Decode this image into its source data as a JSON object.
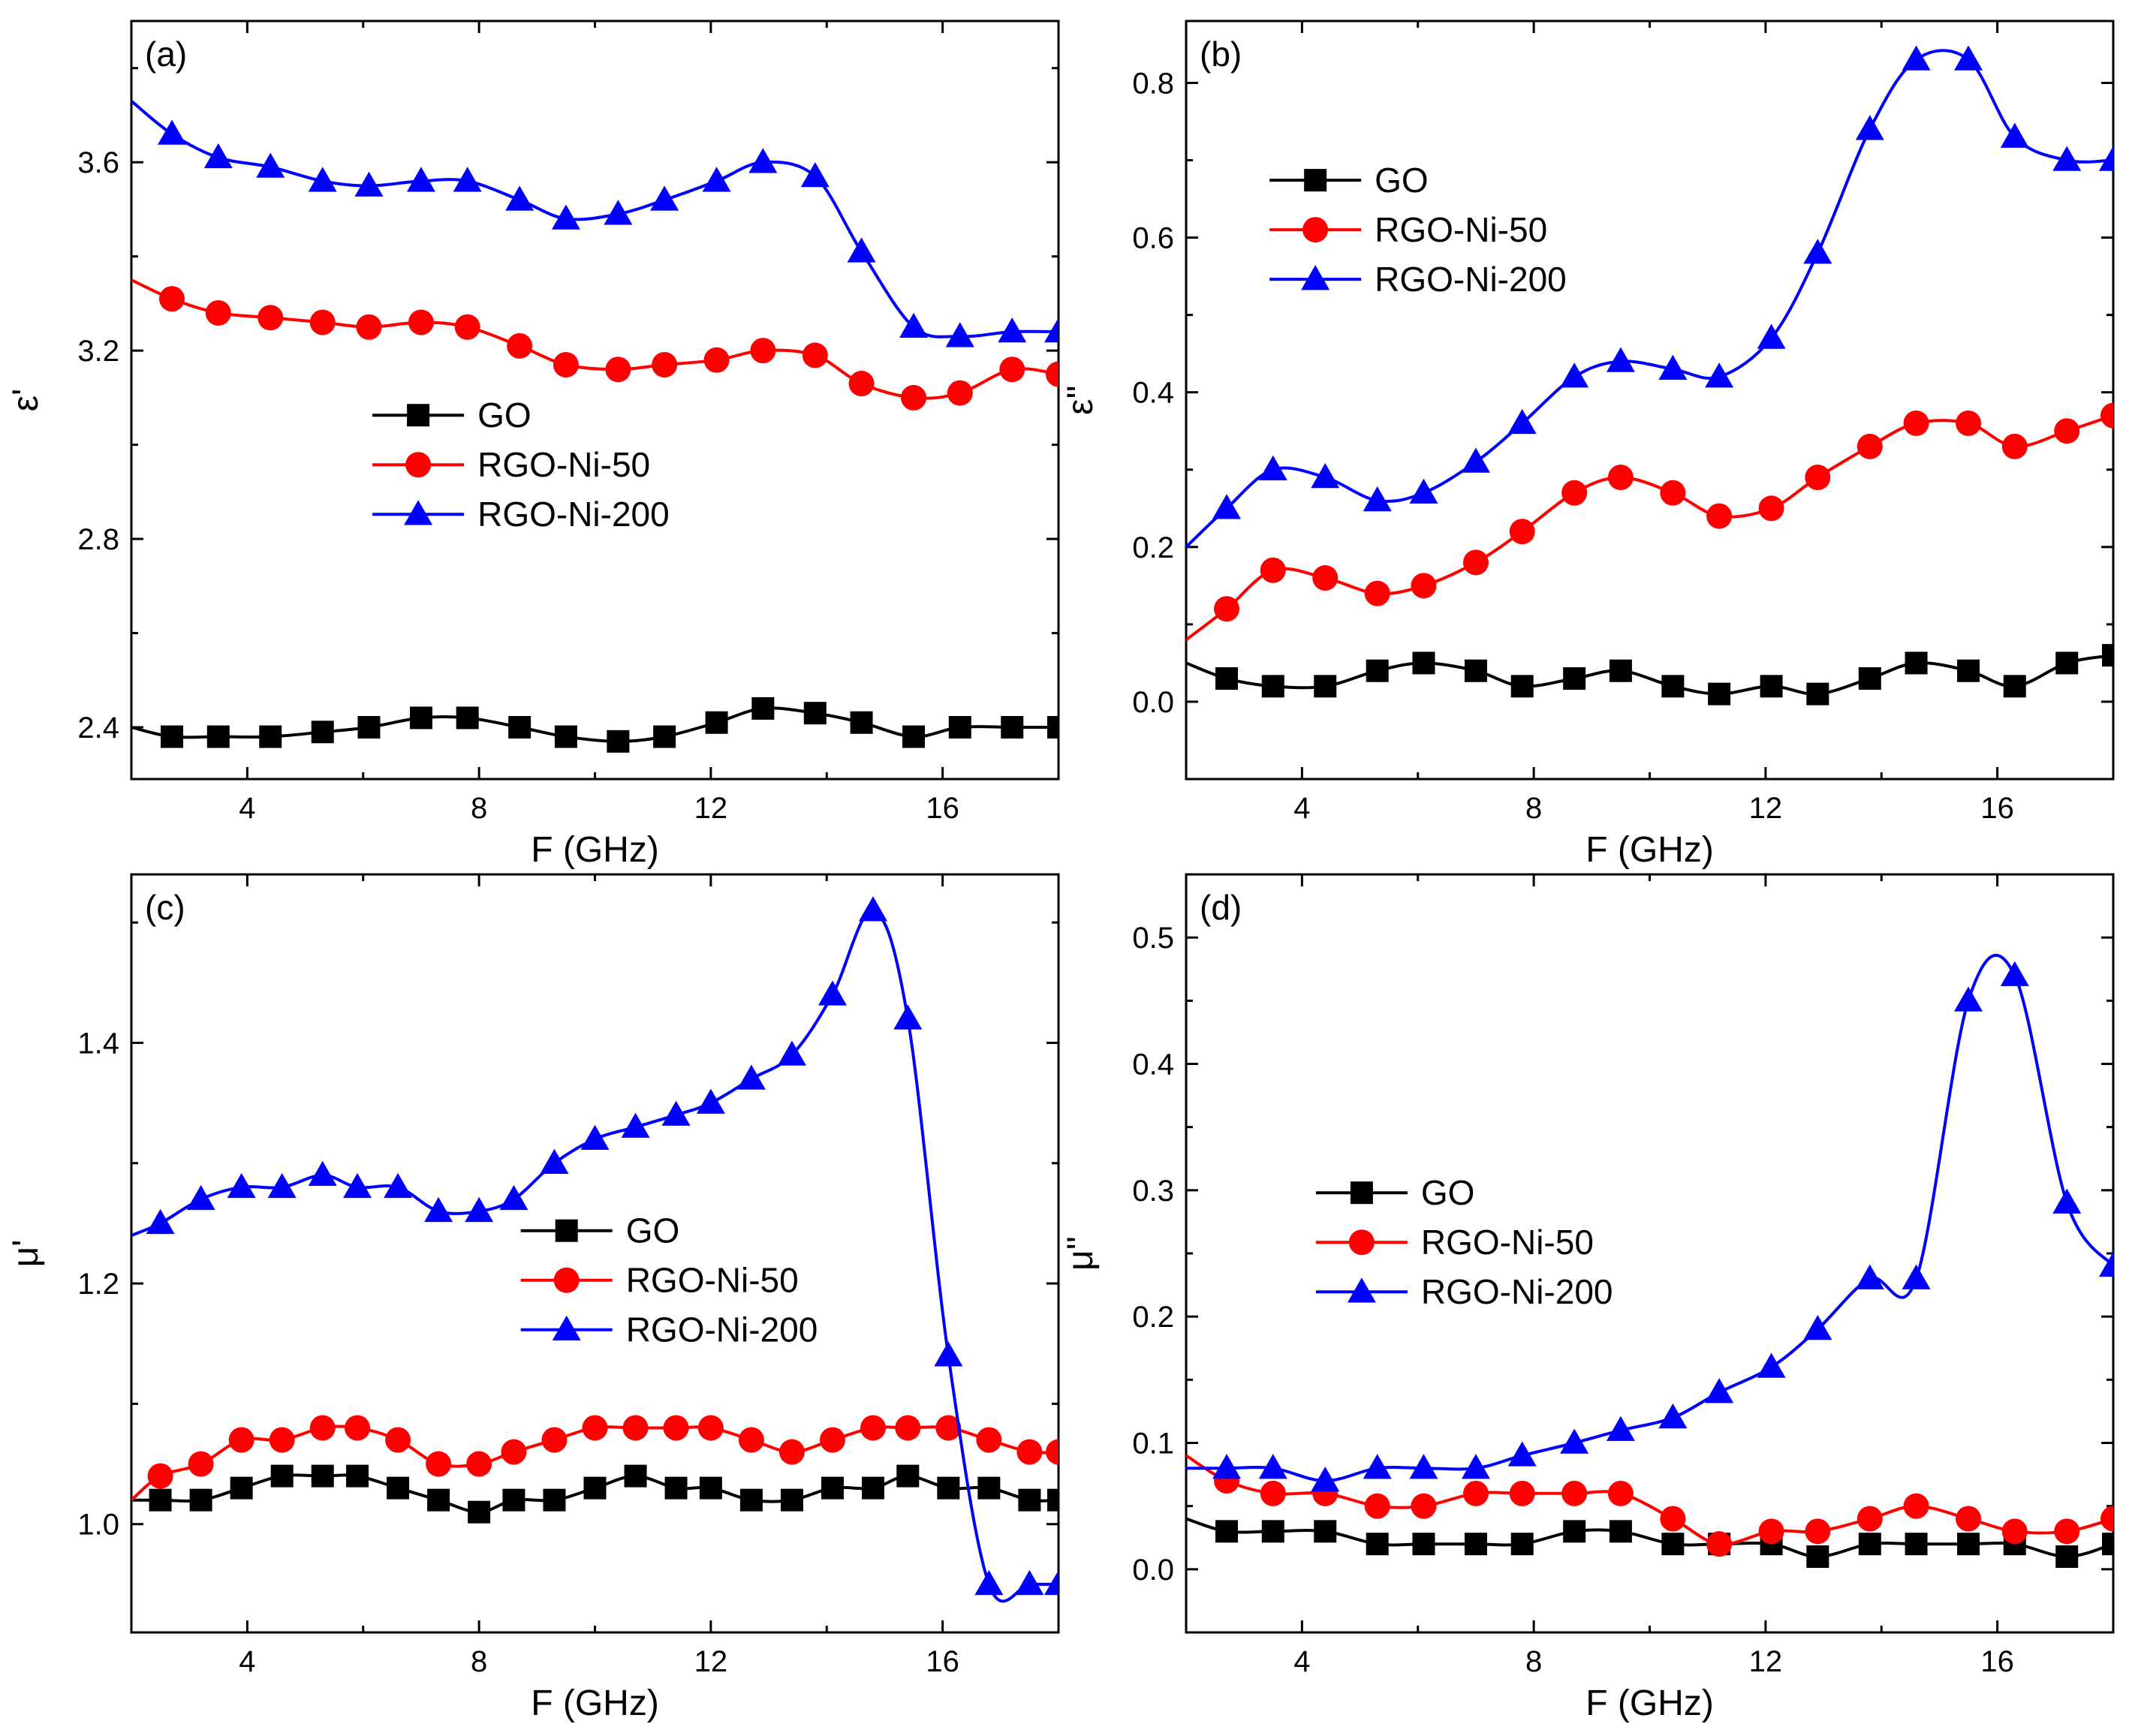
{
  "colors": {
    "GO": "#000000",
    "RGO-Ni-50": "#ff0000",
    "RGO-Ni-200": "#0000ff"
  },
  "chart_data": [
    {
      "type": "line",
      "panel": "(a)",
      "xlabel": "F (GHz)",
      "ylabel": "ε'",
      "xlim": [
        2,
        18
      ],
      "ylim": [
        2.29,
        3.9
      ],
      "xticks": [
        4,
        8,
        12,
        16
      ],
      "yticks": [
        2.4,
        2.8,
        3.2,
        3.6
      ],
      "tick_decimals": 1,
      "legend_position": "center-left",
      "x": [
        2.0,
        2.7,
        3.5,
        4.4,
        5.3,
        6.1,
        7.0,
        7.8,
        8.7,
        9.5,
        10.4,
        11.2,
        12.1,
        12.9,
        13.8,
        14.6,
        15.5,
        16.3,
        17.2,
        18.0
      ],
      "series": [
        {
          "name": "GO",
          "marker": "square",
          "values": [
            2.4,
            2.38,
            2.38,
            2.38,
            2.39,
            2.4,
            2.42,
            2.42,
            2.4,
            2.38,
            2.37,
            2.38,
            2.41,
            2.44,
            2.43,
            2.41,
            2.38,
            2.4,
            2.4,
            2.4
          ]
        },
        {
          "name": "RGO-Ni-50",
          "marker": "circle",
          "values": [
            3.35,
            3.31,
            3.28,
            3.27,
            3.26,
            3.25,
            3.26,
            3.25,
            3.21,
            3.17,
            3.16,
            3.17,
            3.18,
            3.2,
            3.19,
            3.13,
            3.1,
            3.11,
            3.16,
            3.15
          ]
        },
        {
          "name": "RGO-Ni-200",
          "marker": "triangle",
          "values": [
            3.73,
            3.66,
            3.61,
            3.59,
            3.56,
            3.55,
            3.56,
            3.56,
            3.52,
            3.48,
            3.49,
            3.52,
            3.56,
            3.6,
            3.57,
            3.41,
            3.25,
            3.23,
            3.24,
            3.24
          ]
        }
      ]
    },
    {
      "type": "line",
      "panel": "(b)",
      "xlabel": "F (GHz)",
      "ylabel": "ε''",
      "xlim": [
        2,
        18
      ],
      "ylim": [
        -0.1,
        0.88
      ],
      "xticks": [
        4,
        8,
        12,
        16
      ],
      "yticks": [
        0.0,
        0.2,
        0.4,
        0.6,
        0.8
      ],
      "tick_decimals": 1,
      "legend_position": "upper-left",
      "x": [
        2.0,
        2.7,
        3.5,
        4.4,
        5.3,
        6.1,
        7.0,
        7.8,
        8.7,
        9.5,
        10.4,
        11.2,
        12.1,
        12.9,
        13.8,
        14.6,
        15.5,
        16.3,
        17.2,
        18.0
      ],
      "series": [
        {
          "name": "GO",
          "marker": "square",
          "values": [
            0.05,
            0.03,
            0.02,
            0.02,
            0.04,
            0.05,
            0.04,
            0.02,
            0.03,
            0.04,
            0.02,
            0.01,
            0.02,
            0.01,
            0.03,
            0.05,
            0.04,
            0.02,
            0.05,
            0.06
          ]
        },
        {
          "name": "RGO-Ni-50",
          "marker": "circle",
          "values": [
            0.08,
            0.12,
            0.17,
            0.16,
            0.14,
            0.15,
            0.18,
            0.22,
            0.27,
            0.29,
            0.27,
            0.24,
            0.25,
            0.29,
            0.33,
            0.36,
            0.36,
            0.33,
            0.35,
            0.37
          ]
        },
        {
          "name": "RGO-Ni-200",
          "marker": "triangle",
          "values": [
            0.2,
            0.25,
            0.3,
            0.29,
            0.26,
            0.27,
            0.31,
            0.36,
            0.42,
            0.44,
            0.43,
            0.42,
            0.47,
            0.58,
            0.74,
            0.83,
            0.83,
            0.73,
            0.7,
            0.7
          ]
        }
      ]
    },
    {
      "type": "line",
      "panel": "(c)",
      "xlabel": "F (GHz)",
      "ylabel": "μ'",
      "xlim": [
        2,
        18
      ],
      "ylim": [
        0.91,
        1.54
      ],
      "xticks": [
        4,
        8,
        12,
        16
      ],
      "yticks": [
        1.0,
        1.2,
        1.4
      ],
      "tick_decimals": 1,
      "legend_position": "center-right",
      "x": [
        2.0,
        2.5,
        3.2,
        3.9,
        4.6,
        5.3,
        5.9,
        6.6,
        7.3,
        8.0,
        8.6,
        9.3,
        10.0,
        10.7,
        11.4,
        12.0,
        12.7,
        13.4,
        14.1,
        14.8,
        15.4,
        16.1,
        16.8,
        17.5,
        18.0
      ],
      "series": [
        {
          "name": "GO",
          "marker": "square",
          "values": [
            1.02,
            1.02,
            1.02,
            1.03,
            1.04,
            1.04,
            1.04,
            1.03,
            1.02,
            1.01,
            1.02,
            1.02,
            1.03,
            1.04,
            1.03,
            1.03,
            1.02,
            1.02,
            1.03,
            1.03,
            1.04,
            1.03,
            1.03,
            1.02,
            1.02
          ]
        },
        {
          "name": "RGO-Ni-50",
          "marker": "circle",
          "values": [
            1.02,
            1.04,
            1.05,
            1.07,
            1.07,
            1.08,
            1.08,
            1.07,
            1.05,
            1.05,
            1.06,
            1.07,
            1.08,
            1.08,
            1.08,
            1.08,
            1.07,
            1.06,
            1.07,
            1.08,
            1.08,
            1.08,
            1.07,
            1.06,
            1.06
          ]
        },
        {
          "name": "RGO-Ni-200",
          "marker": "triangle",
          "values": [
            1.24,
            1.25,
            1.27,
            1.28,
            1.28,
            1.29,
            1.28,
            1.28,
            1.26,
            1.26,
            1.27,
            1.3,
            1.32,
            1.33,
            1.34,
            1.35,
            1.37,
            1.39,
            1.44,
            1.51,
            1.42,
            1.14,
            0.95,
            0.95,
            0.95
          ]
        }
      ]
    },
    {
      "type": "line",
      "panel": "(d)",
      "xlabel": "F (GHz)",
      "ylabel": "μ''",
      "xlim": [
        2,
        18
      ],
      "ylim": [
        -0.05,
        0.55
      ],
      "xticks": [
        4,
        8,
        12,
        16
      ],
      "yticks": [
        0.0,
        0.1,
        0.2,
        0.3,
        0.4,
        0.5
      ],
      "tick_decimals": 1,
      "legend_position": "center-left",
      "x": [
        2.0,
        2.7,
        3.5,
        4.4,
        5.3,
        6.1,
        7.0,
        7.8,
        8.7,
        9.5,
        10.4,
        11.2,
        12.1,
        12.9,
        13.8,
        14.6,
        15.5,
        16.3,
        17.2,
        18.0
      ],
      "series": [
        {
          "name": "GO",
          "marker": "square",
          "values": [
            0.04,
            0.03,
            0.03,
            0.03,
            0.02,
            0.02,
            0.02,
            0.02,
            0.03,
            0.03,
            0.02,
            0.02,
            0.02,
            0.01,
            0.02,
            0.02,
            0.02,
            0.02,
            0.01,
            0.02
          ]
        },
        {
          "name": "RGO-Ni-50",
          "marker": "circle",
          "values": [
            0.09,
            0.07,
            0.06,
            0.06,
            0.05,
            0.05,
            0.06,
            0.06,
            0.06,
            0.06,
            0.04,
            0.02,
            0.03,
            0.03,
            0.04,
            0.05,
            0.04,
            0.03,
            0.03,
            0.04
          ]
        },
        {
          "name": "RGO-Ni-200",
          "marker": "triangle",
          "values": [
            0.08,
            0.08,
            0.08,
            0.07,
            0.08,
            0.08,
            0.08,
            0.09,
            0.1,
            0.11,
            0.12,
            0.14,
            0.16,
            0.19,
            0.23,
            0.23,
            0.45,
            0.47,
            0.29,
            0.24
          ]
        }
      ]
    }
  ]
}
